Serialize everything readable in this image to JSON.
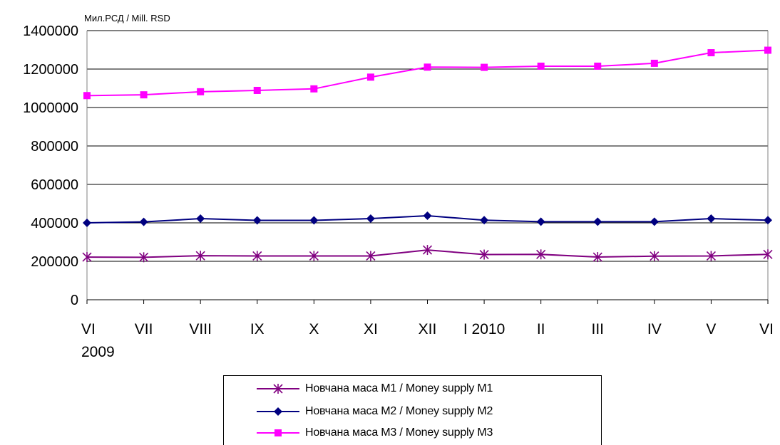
{
  "chart_data": {
    "type": "line",
    "ylabel": "Мил.РСД / Mill. RSD",
    "categories": [
      "VI",
      "VII",
      "VIII",
      "IX",
      "X",
      "XI",
      "XII",
      "I 2010",
      "II",
      "III",
      "IV",
      "V",
      "VI"
    ],
    "x_sublabel_first": "2009",
    "ylim": [
      0,
      1400000
    ],
    "yticks": [
      "0",
      "200000",
      "400000",
      "600000",
      "800000",
      "1000000",
      "1200000",
      "1400000"
    ],
    "grid": "horizontal",
    "legend_position": "bottom",
    "series": [
      {
        "name": "Новчана маса M1 / Money supply M1",
        "marker": "star",
        "color": "#800080",
        "values": [
          222000,
          221000,
          229000,
          228000,
          228000,
          228000,
          259000,
          235000,
          236000,
          222000,
          227000,
          228000,
          236000
        ]
      },
      {
        "name": "Новчана маса M2 / Money supply M2",
        "marker": "diamond",
        "color": "#000080",
        "values": [
          400000,
          405000,
          422000,
          413000,
          413000,
          422000,
          437000,
          414000,
          406000,
          406000,
          406000,
          422000,
          414000
        ]
      },
      {
        "name": "Новчана маса M3 / Money supply M3",
        "marker": "square",
        "color": "#ff00ff",
        "values": [
          1062000,
          1066000,
          1082000,
          1089000,
          1097000,
          1158000,
          1210000,
          1209000,
          1215000,
          1215000,
          1230000,
          1285000,
          1298000
        ]
      }
    ]
  }
}
